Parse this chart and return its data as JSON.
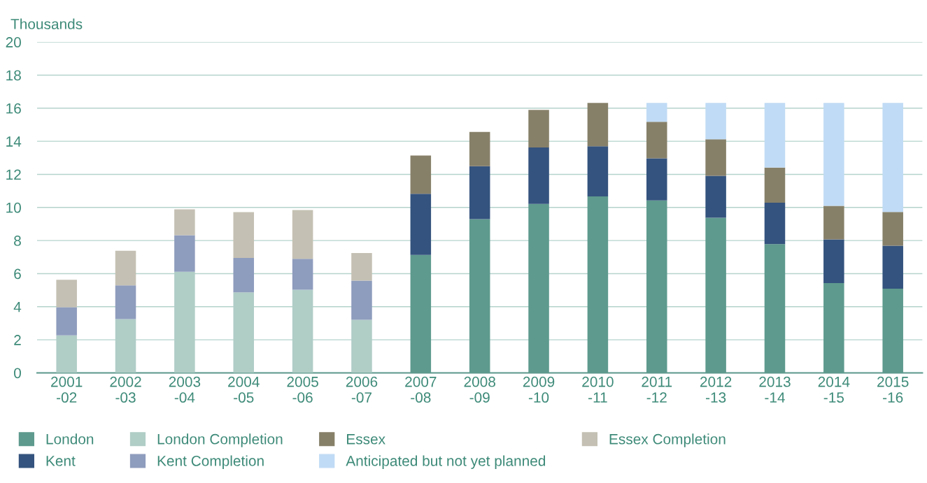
{
  "chart_data": {
    "type": "bar",
    "stacked": true,
    "ylabel": "Thousands",
    "categories": [
      "2001\n-02",
      "2002\n-03",
      "2003\n-04",
      "2004\n-05",
      "2005\n-06",
      "2006\n-07",
      "2007\n-08",
      "2008\n-09",
      "2009\n-10",
      "2010\n-11",
      "2011\n-12",
      "2012\n-13",
      "2013\n-14",
      "2014\n-15",
      "2015\n-16"
    ],
    "series": [
      {
        "name": "London",
        "color": "#5e9a8e",
        "values": [
          null,
          null,
          null,
          null,
          null,
          null,
          7.13,
          9.29,
          10.21,
          10.67,
          10.42,
          9.38,
          7.78,
          5.43,
          5.09
        ]
      },
      {
        "name": "Kent",
        "color": "#34537e",
        "values": [
          null,
          null,
          null,
          null,
          null,
          null,
          3.7,
          3.2,
          3.41,
          3.03,
          2.55,
          2.53,
          2.51,
          2.64,
          2.6
        ]
      },
      {
        "name": "London Completion",
        "color": "#b0cdc6",
        "values": [
          2.27,
          3.25,
          6.11,
          4.87,
          5.03,
          3.21,
          null,
          null,
          null,
          null,
          null,
          null,
          null,
          null,
          null
        ]
      },
      {
        "name": "Kent Completion",
        "color": "#8e9cbd",
        "values": [
          1.7,
          2.04,
          2.21,
          2.08,
          1.87,
          2.37,
          null,
          null,
          null,
          null,
          null,
          null,
          null,
          null,
          null
        ]
      },
      {
        "name": "Essex",
        "color": "#878069",
        "values": [
          null,
          null,
          null,
          null,
          null,
          null,
          2.31,
          2.08,
          2.28,
          2.62,
          2.21,
          2.21,
          2.12,
          2.03,
          2.04
        ]
      },
      {
        "name": "Anticipated but not yet planned",
        "color": "#c0dbf5",
        "values": [
          null,
          null,
          null,
          null,
          null,
          null,
          null,
          null,
          null,
          null,
          1.14,
          2.2,
          3.91,
          6.22,
          6.59
        ]
      },
      {
        "name": "Essex Completion",
        "color": "#c4c0b3",
        "values": [
          1.66,
          2.09,
          1.57,
          2.77,
          2.94,
          1.66,
          null,
          null,
          null,
          null,
          null,
          null,
          null,
          null,
          null
        ]
      }
    ],
    "ylim": [
      0,
      20
    ],
    "yticks": [
      0,
      2,
      4,
      6,
      8,
      10,
      12,
      14,
      16,
      18,
      20
    ],
    "grid": "y",
    "legend": "bottom"
  }
}
